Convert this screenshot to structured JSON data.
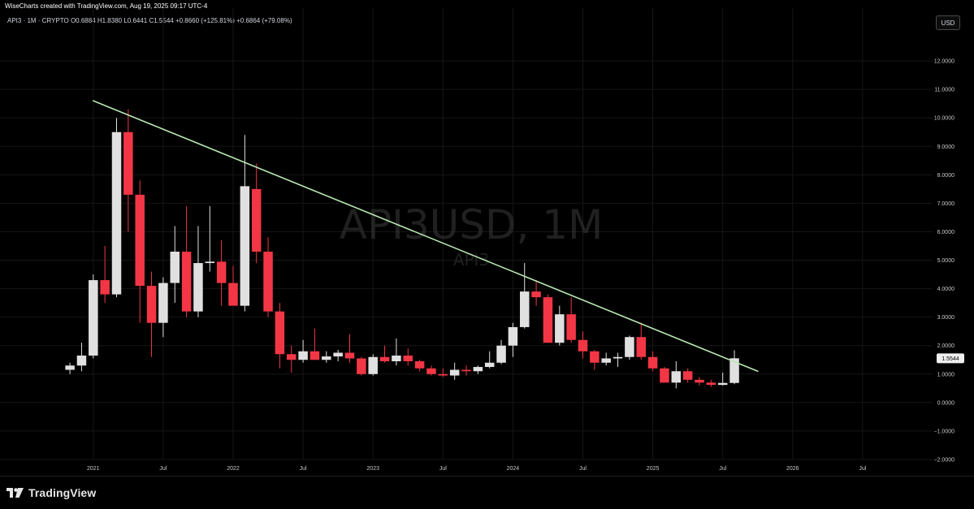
{
  "header": {
    "credit": "WiseCharts created with TradingView.com, Aug 19, 2025 09:17 UTC-4",
    "legend": "API3 · 1M · CRYPTO  O0.6884  H1.8380  L0.6441  C1.5544  +0.8660 (+125.81%)  +0.6864 (+79.08%)",
    "currency_label": "USD"
  },
  "watermark": {
    "symbol": "API3USD, 1M",
    "name": "API3"
  },
  "footer": {
    "brand": "TradingView"
  },
  "colors": {
    "up": "#e0e0e0",
    "down": "#f23645",
    "trendline": "#b7e8b0",
    "background": "#000000",
    "grid": "#161616"
  },
  "chart_data": {
    "type": "candlestick",
    "title": "API3USD, 1M",
    "symbol": "API3",
    "exchange": "CRYPTO",
    "interval": "1M",
    "ohlc_header": {
      "open": 0.6884,
      "high": 1.838,
      "low": 0.6441,
      "close": 1.5544,
      "change": 0.866,
      "change_pct": 125.81,
      "change2": 0.6864,
      "change2_pct": 79.08
    },
    "last_price_label": "1.5544",
    "ylim": [
      -2,
      13
    ],
    "y_ticks": [
      -2,
      -1,
      0,
      1,
      2,
      3,
      4,
      5,
      6,
      7,
      8,
      9,
      10,
      11,
      12
    ],
    "y_tick_labels": [
      "−2.0000",
      "−1.0000",
      "0.0000",
      "1.0000",
      "2.0000",
      "3.0000",
      "4.0000",
      "5.0000",
      "6.0000",
      "7.0000",
      "8.0000",
      "9.0000",
      "10.0000",
      "11.0000",
      "12.0000"
    ],
    "x_ticks": [
      {
        "date": "2021-01",
        "label": "2021"
      },
      {
        "date": "2021-07",
        "label": "Jul"
      },
      {
        "date": "2022-01",
        "label": "2022"
      },
      {
        "date": "2022-07",
        "label": "Jul"
      },
      {
        "date": "2023-01",
        "label": "2023"
      },
      {
        "date": "2023-07",
        "label": "Jul"
      },
      {
        "date": "2024-01",
        "label": "2024"
      },
      {
        "date": "2024-07",
        "label": "Jul"
      },
      {
        "date": "2025-01",
        "label": "2025"
      },
      {
        "date": "2025-07",
        "label": "Jul"
      },
      {
        "date": "2026-01",
        "label": "2026"
      },
      {
        "date": "2026-07",
        "label": "Jul"
      }
    ],
    "x_range": [
      "2020-05",
      "2027-01"
    ],
    "trendline": {
      "start": {
        "date": "2021-01",
        "value": 10.6
      },
      "end": {
        "date": "2025-10",
        "value": 1.1
      }
    },
    "candles": [
      {
        "date": "2020-11",
        "open": 1.15,
        "high": 1.4,
        "low": 1.0,
        "close": 1.3
      },
      {
        "date": "2020-12",
        "open": 1.3,
        "high": 2.1,
        "low": 1.1,
        "close": 1.65
      },
      {
        "date": "2021-01",
        "open": 1.65,
        "high": 4.5,
        "low": 1.55,
        "close": 4.3
      },
      {
        "date": "2021-02",
        "open": 4.3,
        "high": 5.5,
        "low": 3.5,
        "close": 3.8
      },
      {
        "date": "2021-03",
        "open": 3.8,
        "high": 10.0,
        "low": 3.7,
        "close": 9.5
      },
      {
        "date": "2021-04",
        "open": 9.5,
        "high": 10.3,
        "low": 6.0,
        "close": 7.3
      },
      {
        "date": "2021-05",
        "open": 7.3,
        "high": 7.8,
        "low": 2.8,
        "close": 4.1
      },
      {
        "date": "2021-06",
        "open": 4.1,
        "high": 4.6,
        "low": 1.6,
        "close": 2.8
      },
      {
        "date": "2021-07",
        "open": 2.8,
        "high": 4.4,
        "low": 2.3,
        "close": 4.2
      },
      {
        "date": "2021-08",
        "open": 4.2,
        "high": 6.2,
        "low": 3.5,
        "close": 5.3
      },
      {
        "date": "2021-09",
        "open": 5.3,
        "high": 6.9,
        "low": 3.0,
        "close": 3.2
      },
      {
        "date": "2021-10",
        "open": 3.2,
        "high": 6.2,
        "low": 3.0,
        "close": 4.9
      },
      {
        "date": "2021-11",
        "open": 4.9,
        "high": 6.9,
        "low": 4.6,
        "close": 4.95
      },
      {
        "date": "2021-12",
        "open": 4.95,
        "high": 5.7,
        "low": 3.4,
        "close": 4.2
      },
      {
        "date": "2022-01",
        "open": 4.2,
        "high": 4.8,
        "low": 3.5,
        "close": 3.4
      },
      {
        "date": "2022-02",
        "open": 3.4,
        "high": 9.4,
        "low": 3.2,
        "close": 7.6
      },
      {
        "date": "2022-03",
        "open": 7.5,
        "high": 8.4,
        "low": 4.9,
        "close": 5.3
      },
      {
        "date": "2022-04",
        "open": 5.3,
        "high": 5.8,
        "low": 3.0,
        "close": 3.2
      },
      {
        "date": "2022-05",
        "open": 3.2,
        "high": 3.5,
        "low": 1.2,
        "close": 1.7
      },
      {
        "date": "2022-06",
        "open": 1.7,
        "high": 2.0,
        "low": 1.05,
        "close": 1.5
      },
      {
        "date": "2022-07",
        "open": 1.5,
        "high": 2.2,
        "low": 1.4,
        "close": 1.8
      },
      {
        "date": "2022-08",
        "open": 1.8,
        "high": 2.6,
        "low": 1.5,
        "close": 1.5
      },
      {
        "date": "2022-09",
        "open": 1.5,
        "high": 1.8,
        "low": 1.4,
        "close": 1.62
      },
      {
        "date": "2022-10",
        "open": 1.62,
        "high": 1.85,
        "low": 1.45,
        "close": 1.75
      },
      {
        "date": "2022-11",
        "open": 1.75,
        "high": 2.4,
        "low": 1.4,
        "close": 1.55
      },
      {
        "date": "2022-12",
        "open": 1.55,
        "high": 1.6,
        "low": 0.95,
        "close": 1.0
      },
      {
        "date": "2023-01",
        "open": 1.0,
        "high": 1.7,
        "low": 0.95,
        "close": 1.6
      },
      {
        "date": "2023-02",
        "open": 1.6,
        "high": 2.0,
        "low": 1.4,
        "close": 1.45
      },
      {
        "date": "2023-03",
        "open": 1.45,
        "high": 2.25,
        "low": 1.3,
        "close": 1.65
      },
      {
        "date": "2023-04",
        "open": 1.65,
        "high": 1.9,
        "low": 1.3,
        "close": 1.45
      },
      {
        "date": "2023-05",
        "open": 1.45,
        "high": 1.5,
        "low": 1.1,
        "close": 1.2
      },
      {
        "date": "2023-06",
        "open": 1.2,
        "high": 1.3,
        "low": 0.95,
        "close": 1.0
      },
      {
        "date": "2023-07",
        "open": 1.0,
        "high": 1.2,
        "low": 0.9,
        "close": 0.95
      },
      {
        "date": "2023-08",
        "open": 0.95,
        "high": 1.4,
        "low": 0.8,
        "close": 1.15
      },
      {
        "date": "2023-09",
        "open": 1.15,
        "high": 1.3,
        "low": 0.95,
        "close": 1.1
      },
      {
        "date": "2023-10",
        "open": 1.1,
        "high": 1.3,
        "low": 1.0,
        "close": 1.25
      },
      {
        "date": "2023-11",
        "open": 1.25,
        "high": 1.8,
        "low": 1.2,
        "close": 1.4
      },
      {
        "date": "2023-12",
        "open": 1.4,
        "high": 2.2,
        "low": 1.35,
        "close": 2.0
      },
      {
        "date": "2024-01",
        "open": 2.0,
        "high": 2.8,
        "low": 1.6,
        "close": 2.65
      },
      {
        "date": "2024-02",
        "open": 2.65,
        "high": 4.9,
        "low": 2.6,
        "close": 3.9
      },
      {
        "date": "2024-03",
        "open": 3.9,
        "high": 4.3,
        "low": 3.4,
        "close": 3.7
      },
      {
        "date": "2024-04",
        "open": 3.7,
        "high": 3.8,
        "low": 2.1,
        "close": 2.1
      },
      {
        "date": "2024-05",
        "open": 2.1,
        "high": 3.4,
        "low": 2.0,
        "close": 3.1
      },
      {
        "date": "2024-06",
        "open": 3.1,
        "high": 3.7,
        "low": 2.1,
        "close": 2.2
      },
      {
        "date": "2024-07",
        "open": 2.2,
        "high": 2.5,
        "low": 1.55,
        "close": 1.8
      },
      {
        "date": "2024-08",
        "open": 1.8,
        "high": 1.85,
        "low": 1.15,
        "close": 1.4
      },
      {
        "date": "2024-09",
        "open": 1.4,
        "high": 1.75,
        "low": 1.3,
        "close": 1.55
      },
      {
        "date": "2024-10",
        "open": 1.55,
        "high": 1.75,
        "low": 1.25,
        "close": 1.6
      },
      {
        "date": "2024-11",
        "open": 1.6,
        "high": 2.35,
        "low": 1.5,
        "close": 2.3
      },
      {
        "date": "2024-12",
        "open": 2.3,
        "high": 2.8,
        "low": 1.5,
        "close": 1.6
      },
      {
        "date": "2025-01",
        "open": 1.6,
        "high": 1.8,
        "low": 1.1,
        "close": 1.2
      },
      {
        "date": "2025-02",
        "open": 1.2,
        "high": 1.25,
        "low": 0.7,
        "close": 0.7
      },
      {
        "date": "2025-03",
        "open": 0.7,
        "high": 1.45,
        "low": 0.5,
        "close": 1.1
      },
      {
        "date": "2025-04",
        "open": 1.1,
        "high": 1.2,
        "low": 0.7,
        "close": 0.8
      },
      {
        "date": "2025-05",
        "open": 0.8,
        "high": 0.9,
        "low": 0.6,
        "close": 0.7
      },
      {
        "date": "2025-06",
        "open": 0.7,
        "high": 0.8,
        "low": 0.55,
        "close": 0.62
      },
      {
        "date": "2025-07",
        "open": 0.62,
        "high": 1.05,
        "low": 0.6,
        "close": 0.6884
      },
      {
        "date": "2025-08",
        "open": 0.6884,
        "high": 1.838,
        "low": 0.6441,
        "close": 1.5544
      }
    ]
  }
}
